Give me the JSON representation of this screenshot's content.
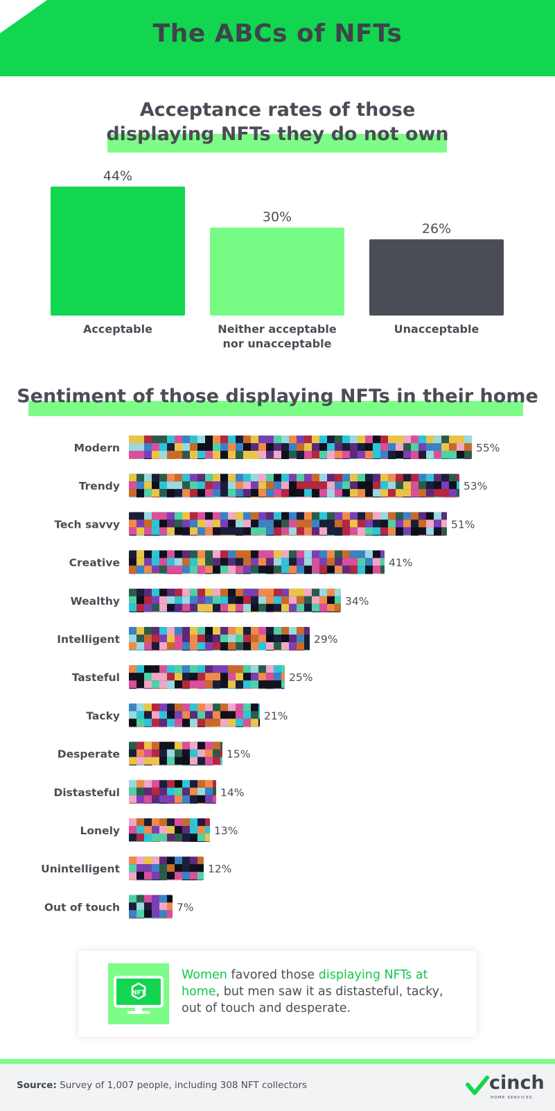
{
  "header": {
    "title": "The ABCs of NFTs"
  },
  "chart1_heading": {
    "line1": "Acceptance rates of those",
    "line2": "displaying NFTs they do not own"
  },
  "chart2_heading": "Sentiment of those displaying NFTs in their home",
  "chart_data": [
    {
      "type": "bar",
      "title": "Acceptance rates of those displaying NFTs they do not own",
      "categories": [
        "Acceptable",
        "Neither acceptable nor unacceptable",
        "Unacceptable"
      ],
      "category_lines": [
        [
          "Acceptable"
        ],
        [
          "Neither acceptable",
          "nor unacceptable"
        ],
        [
          "Unacceptable"
        ]
      ],
      "values": [
        44,
        30,
        26
      ],
      "value_labels": [
        "44%",
        "30%",
        "26%"
      ],
      "unit": "%",
      "colors": [
        "#12d64f",
        "#76fc84",
        "#4a4d55"
      ],
      "ylim": [
        0,
        44
      ],
      "grid": false,
      "legend": "none"
    },
    {
      "type": "bar",
      "orientation": "horizontal",
      "title": "Sentiment of those displaying NFTs in their home",
      "categories": [
        "Modern",
        "Trendy",
        "Tech savvy",
        "Creative",
        "Wealthy",
        "Intelligent",
        "Tasteful",
        "Tacky",
        "Desperate",
        "Distasteful",
        "Lonely",
        "Unintelligent",
        "Out of touch"
      ],
      "values": [
        55,
        53,
        51,
        41,
        34,
        29,
        25,
        21,
        15,
        14,
        13,
        12,
        7
      ],
      "value_labels": [
        "55%",
        "53%",
        "51%",
        "41%",
        "34%",
        "29%",
        "25%",
        "21%",
        "15%",
        "14%",
        "13%",
        "12%",
        "7%"
      ],
      "unit": "%",
      "xlim": [
        0,
        55
      ],
      "fill": "NFT artwork collage",
      "grid": false,
      "legend": "none"
    }
  ],
  "note": {
    "highlight1": "Women",
    "text1": " favored those ",
    "highlight2": "displaying NFTs at home",
    "text2": ", but men saw it as distasteful, tacky, out of touch and desperate.",
    "icon": "monitor-nft-icon"
  },
  "footer": {
    "source_label": "Source:",
    "source_text": " Survey of 1,007 people, including 308 NFT collectors",
    "logo": "cinch",
    "logo_sub": "HOME SERVICES"
  },
  "colors": {
    "brand_green": "#12d64f",
    "light_green": "#76fc84",
    "dark_gray": "#4a4d55"
  }
}
